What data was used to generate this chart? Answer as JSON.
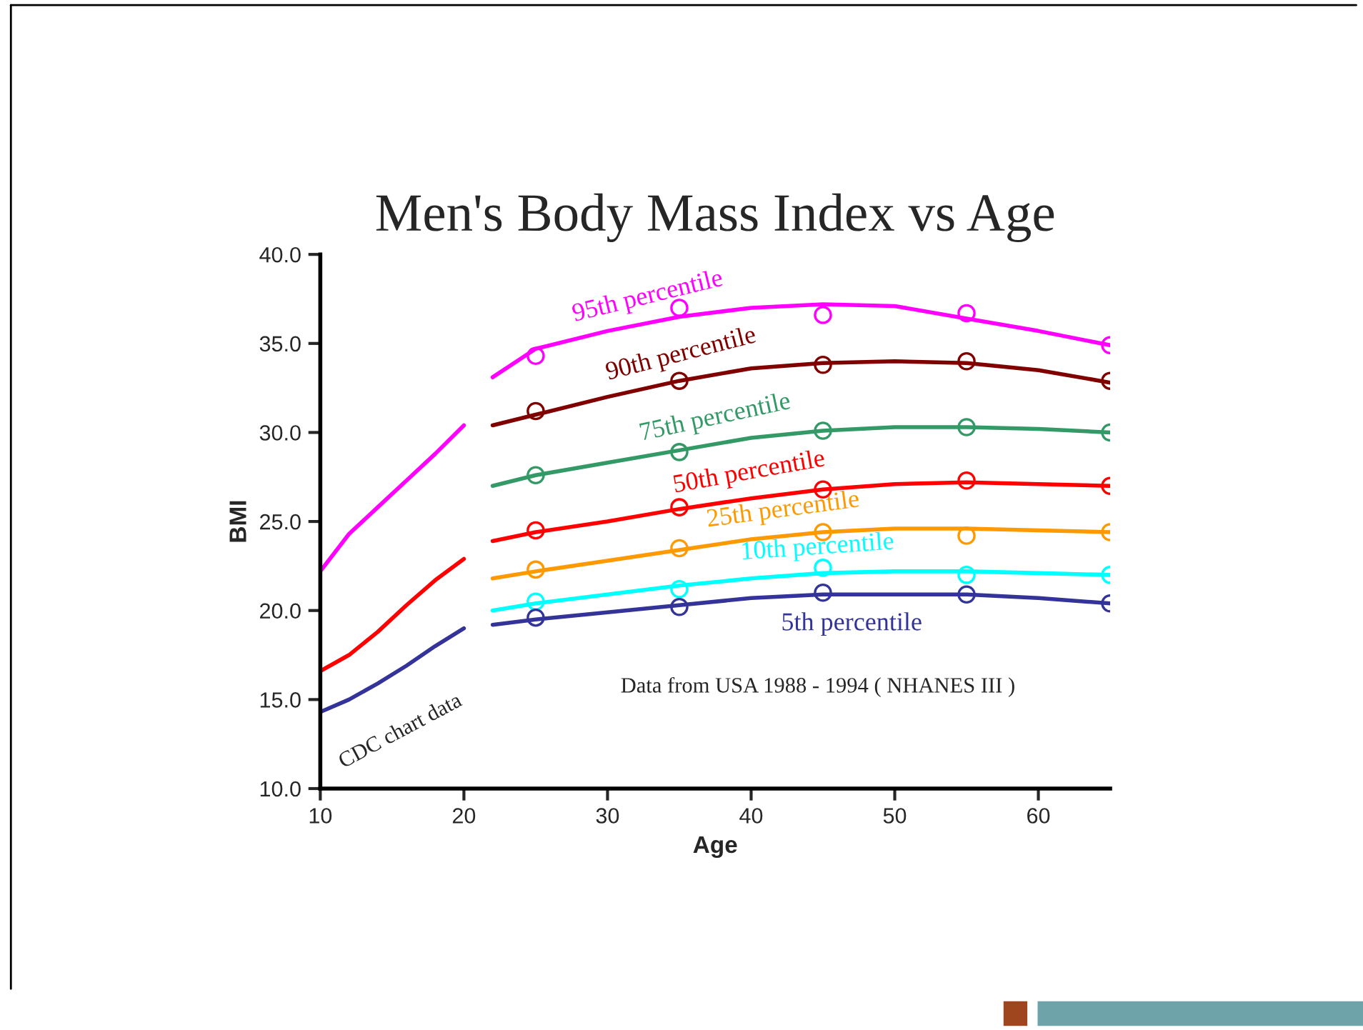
{
  "chart_data": {
    "type": "line",
    "title": "Men's Body Mass Index vs Age",
    "xlabel": "Age",
    "ylabel": "BMI",
    "xlim": [
      10,
      65
    ],
    "xticks": [
      10,
      20,
      30,
      40,
      50,
      60
    ],
    "ylim": [
      10,
      40
    ],
    "yticks": [
      {
        "value": 10,
        "label": "10.0"
      },
      {
        "value": 15,
        "label": "15.0"
      },
      {
        "value": 20,
        "label": "20.0"
      },
      {
        "value": 25,
        "label": "25.0"
      },
      {
        "value": 30,
        "label": "30.0"
      },
      {
        "value": 35,
        "label": "35.0"
      },
      {
        "value": 40,
        "label": "40.0"
      }
    ],
    "grid": false,
    "marker": "none",
    "annotations": [
      "CDC chart data",
      "Data from USA 1988 - 1994 ( NHANES III )"
    ],
    "series": [
      {
        "name": "95th percentile",
        "color": "#ff00ff",
        "x": [
          22,
          25,
          30,
          35,
          40,
          45,
          50,
          55,
          60,
          65
        ],
        "values": [
          33.1,
          34.7,
          35.7,
          36.5,
          37.0,
          37.2,
          37.1,
          36.4,
          35.7,
          34.9
        ]
      },
      {
        "name": "90th percentile",
        "color": "#800000",
        "x": [
          22,
          25,
          30,
          35,
          40,
          45,
          50,
          55,
          60,
          65
        ],
        "values": [
          30.4,
          31.0,
          32.0,
          32.9,
          33.6,
          33.9,
          34.0,
          33.9,
          33.5,
          32.8
        ]
      },
      {
        "name": "75th percentile",
        "color": "#339966",
        "x": [
          22,
          25,
          30,
          35,
          40,
          45,
          50,
          55,
          60,
          65
        ],
        "values": [
          27.0,
          27.6,
          28.3,
          29.0,
          29.7,
          30.1,
          30.3,
          30.3,
          30.2,
          30.0
        ]
      },
      {
        "name": "50th percentile",
        "color": "#ff0000",
        "x": [
          22,
          25,
          30,
          35,
          40,
          45,
          50,
          55,
          60,
          65
        ],
        "values": [
          23.9,
          24.4,
          25.0,
          25.7,
          26.3,
          26.8,
          27.1,
          27.2,
          27.1,
          27.0
        ]
      },
      {
        "name": "25th percentile",
        "color": "#ff9900",
        "x": [
          22,
          25,
          30,
          35,
          40,
          45,
          50,
          55,
          60,
          65
        ],
        "values": [
          21.8,
          22.2,
          22.8,
          23.4,
          24.0,
          24.4,
          24.6,
          24.6,
          24.5,
          24.4
        ]
      },
      {
        "name": "10th percentile",
        "color": "#00ffff",
        "x": [
          22,
          25,
          30,
          35,
          40,
          45,
          50,
          55,
          60,
          65
        ],
        "values": [
          20.0,
          20.4,
          20.9,
          21.4,
          21.8,
          22.1,
          22.2,
          22.2,
          22.1,
          22.0
        ]
      },
      {
        "name": "5th percentile",
        "color": "#333399",
        "x": [
          22,
          25,
          30,
          35,
          40,
          45,
          50,
          55,
          60,
          65
        ],
        "values": [
          19.2,
          19.5,
          19.9,
          20.3,
          20.7,
          20.9,
          20.9,
          20.9,
          20.7,
          20.4
        ]
      },
      {
        "color": "#ff00ff",
        "x": [
          10,
          12,
          14,
          16,
          18,
          20
        ],
        "values": [
          22.2,
          24.3,
          25.8,
          27.3,
          28.8,
          30.4
        ]
      },
      {
        "color": "#ff0000",
        "x": [
          10,
          12,
          14,
          16,
          18,
          20
        ],
        "values": [
          16.6,
          17.5,
          18.8,
          20.3,
          21.7,
          22.9
        ]
      },
      {
        "color": "#333399",
        "x": [
          10,
          12,
          14,
          16,
          18,
          20
        ],
        "values": [
          14.3,
          15.0,
          15.9,
          16.9,
          18.0,
          19.0
        ]
      },
      {
        "type": "scatter",
        "marker": "circle",
        "color": "#ff00ff",
        "x": [
          25,
          35,
          45,
          55,
          65
        ],
        "values": [
          34.3,
          37.0,
          36.6,
          36.7,
          34.9
        ]
      },
      {
        "type": "scatter",
        "marker": "circle",
        "color": "#800000",
        "x": [
          25,
          35,
          45,
          55,
          65
        ],
        "values": [
          31.2,
          32.9,
          33.8,
          34.0,
          32.9
        ]
      },
      {
        "type": "scatter",
        "marker": "circle",
        "color": "#339966",
        "x": [
          25,
          35,
          45,
          55,
          65
        ],
        "values": [
          27.6,
          28.9,
          30.1,
          30.3,
          30.0
        ]
      },
      {
        "type": "scatter",
        "marker": "circle",
        "color": "#ff0000",
        "x": [
          25,
          35,
          45,
          55,
          65
        ],
        "values": [
          24.5,
          25.8,
          26.8,
          27.3,
          27.0
        ]
      },
      {
        "type": "scatter",
        "marker": "circle",
        "color": "#ff9900",
        "x": [
          25,
          35,
          45,
          55,
          65
        ],
        "values": [
          22.3,
          23.5,
          24.4,
          24.2,
          24.4
        ]
      },
      {
        "type": "scatter",
        "marker": "circle",
        "color": "#00ffff",
        "x": [
          25,
          35,
          45,
          55,
          65
        ],
        "values": [
          20.5,
          21.2,
          22.4,
          22.0,
          22.0
        ]
      },
      {
        "type": "scatter",
        "marker": "circle",
        "color": "#333399",
        "x": [
          25,
          35,
          45,
          55,
          65
        ],
        "values": [
          19.6,
          20.2,
          21.0,
          20.9,
          20.4
        ]
      }
    ]
  }
}
